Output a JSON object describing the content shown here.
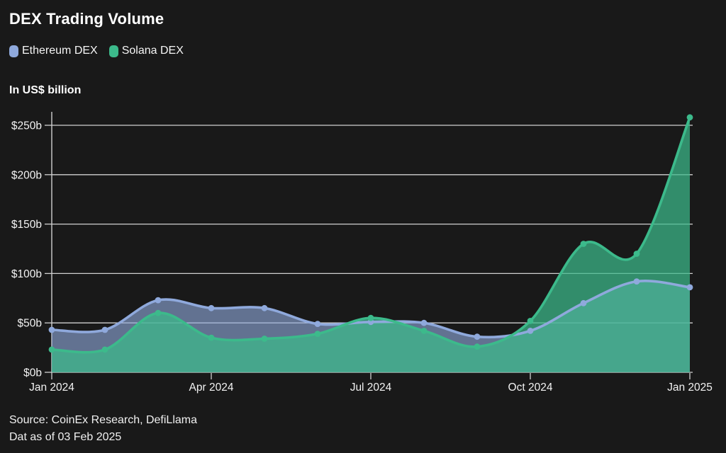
{
  "title": "DEX Trading Volume",
  "legend": [
    {
      "label": "Ethereum DEX",
      "color": "#8fa9dc"
    },
    {
      "label": "Solana DEX",
      "color": "#3cba8b"
    }
  ],
  "units_label": "In US$ billion",
  "source": {
    "line1": "Source: CoinEx Research, DefiLlama",
    "line2": "Dat as of 03 Feb 2025"
  },
  "colors": {
    "background": "#191919",
    "grid": "#d0d0d0",
    "axis": "#d0d0d0",
    "text": "#f2f2f2"
  },
  "chart_data": {
    "type": "area",
    "title": "DEX Trading Volume",
    "ylabel": "In US$ billion",
    "x": [
      "Jan 2024",
      "Feb 2024",
      "Mar 2024",
      "Apr 2024",
      "May 2024",
      "Jun 2024",
      "Jul 2024",
      "Aug 2024",
      "Sep 2024",
      "Oct 2024",
      "Nov 2024",
      "Dec 2024",
      "Jan 2025"
    ],
    "x_tick_indices": [
      0,
      3,
      6,
      9,
      12
    ],
    "x_tick_labels": [
      "Jan 2024",
      "Apr 2024",
      "Jul 2024",
      "Oct 2024",
      "Jan 2025"
    ],
    "series": [
      {
        "name": "Ethereum DEX",
        "color": "#8fa9dc",
        "fill_opacity": 0.62,
        "values": [
          43,
          43,
          73,
          65,
          65,
          49,
          51,
          50,
          36,
          42,
          70,
          92,
          86
        ]
      },
      {
        "name": "Solana DEX",
        "color": "#3cba8b",
        "fill_opacity": 0.72,
        "values": [
          23,
          23,
          60,
          35,
          34,
          39,
          55,
          42,
          26,
          52,
          130,
          120,
          258
        ]
      }
    ],
    "ylim": [
      0,
      250
    ],
    "y_ticks": [
      0,
      50,
      100,
      150,
      200,
      250
    ],
    "y_tick_labels": [
      "$0b",
      "$50b",
      "$100b",
      "$150b",
      "$200b",
      "$250b"
    ],
    "grid": true,
    "legend_position": "top-left",
    "marker": "circle",
    "smoothing": true
  }
}
